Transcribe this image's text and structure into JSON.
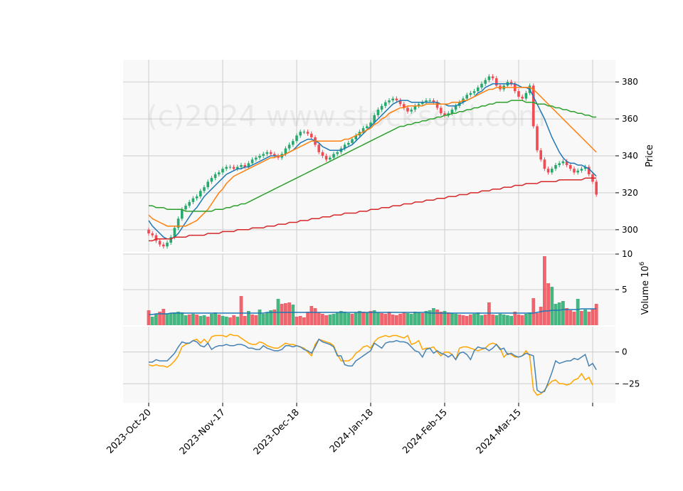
{
  "watermark": "(c)2024 www.stocksoid.com",
  "colors": {
    "up": "#26a96c",
    "down": "#ef4b55",
    "ma_blue": "#1f77b4",
    "ma_orange": "#ff7f0e",
    "ma_green": "#2ca02c",
    "ma_red": "#d62728",
    "osc_blue": "#4682b4",
    "osc_orange": "#ffa500",
    "grid": "#cccccc",
    "panel_bg": "#f8f8f8"
  },
  "chart_data": {
    "type": "candlestick",
    "x_tick_labels": [
      "2023-Oct-20",
      "2023-Nov-17",
      "2023-Dec-18",
      "2024-Jan-18",
      "2024-Feb-15",
      "2024-Mar-15"
    ],
    "x_tick_index": [
      0,
      20,
      40,
      60,
      80,
      100
    ],
    "price": {
      "ylabel": "Price",
      "ylim": [
        288,
        392
      ],
      "yticks": [
        300,
        320,
        340,
        360,
        380
      ],
      "close": [
        298,
        297,
        294,
        292,
        291,
        293,
        296,
        301,
        306,
        311,
        313,
        315,
        317,
        318,
        321,
        323,
        326,
        328,
        330,
        331,
        333,
        334,
        334,
        333,
        334,
        335,
        334,
        336,
        338,
        339,
        340,
        341,
        342,
        341,
        340,
        339,
        341,
        344,
        346,
        348,
        351,
        353,
        353,
        352,
        350,
        346,
        342,
        340,
        338,
        339,
        341,
        342,
        344,
        346,
        347,
        349,
        351,
        353,
        355,
        356,
        358,
        362,
        365,
        367,
        369,
        370,
        371,
        370,
        368,
        366,
        364,
        365,
        367,
        368,
        369,
        370,
        370,
        369,
        366,
        363,
        362,
        363,
        365,
        367,
        369,
        371,
        373,
        374,
        375,
        377,
        379,
        381,
        383,
        382,
        378,
        376,
        378,
        380,
        379,
        375,
        372,
        371,
        374,
        378,
        356,
        343,
        338,
        333,
        331,
        333,
        335,
        336,
        337,
        335,
        333,
        331,
        332,
        333,
        334,
        330,
        326,
        319
      ]
    },
    "moving_averages": [
      {
        "color": "blue",
        "values": [
          305,
          302,
          300,
          298,
          296,
          295,
          295,
          296,
          298,
          301,
          304,
          307,
          310,
          312,
          315,
          318,
          320,
          322,
          324,
          326,
          328,
          330,
          331,
          332,
          333,
          333,
          334,
          334,
          335,
          336,
          337,
          338,
          339,
          340,
          340,
          340,
          340,
          341,
          342,
          343,
          345,
          347,
          348,
          349,
          349,
          348,
          347,
          345,
          344,
          343,
          343,
          343,
          343,
          344,
          345,
          346,
          348,
          350,
          352,
          354,
          356,
          358,
          360,
          362,
          364,
          366,
          368,
          369,
          370,
          370,
          370,
          369,
          369,
          369,
          369,
          369,
          369,
          369,
          369,
          368,
          368,
          367,
          367,
          367,
          368,
          369,
          370,
          371,
          372,
          374,
          375,
          377,
          378,
          379,
          379,
          379,
          379,
          379,
          379,
          379,
          378,
          377,
          377,
          376,
          372,
          368,
          364,
          360,
          355,
          350,
          346,
          342,
          339,
          337,
          336,
          336,
          335,
          335,
          334,
          333,
          331,
          329
        ]
      },
      {
        "color": "orange",
        "values": [
          308,
          306,
          305,
          304,
          303,
          302,
          302,
          302,
          302,
          302,
          302,
          303,
          304,
          305,
          307,
          309,
          311,
          314,
          317,
          320,
          322,
          325,
          327,
          329,
          330,
          331,
          332,
          333,
          334,
          335,
          336,
          337,
          338,
          339,
          339,
          340,
          340,
          341,
          342,
          343,
          344,
          345,
          346,
          347,
          348,
          348,
          348,
          348,
          348,
          348,
          348,
          348,
          348,
          349,
          349,
          350,
          351,
          352,
          353,
          354,
          355,
          357,
          358,
          360,
          361,
          363,
          364,
          365,
          366,
          366,
          367,
          367,
          367,
          367,
          367,
          368,
          368,
          368,
          368,
          368,
          368,
          368,
          369,
          369,
          369,
          370,
          370,
          371,
          372,
          373,
          374,
          375,
          376,
          376,
          377,
          377,
          377,
          377,
          377,
          377,
          377,
          377,
          377,
          377,
          376,
          374,
          372,
          370,
          368,
          366,
          364,
          362,
          360,
          358,
          356,
          354,
          352,
          350,
          348,
          346,
          344,
          342
        ]
      },
      {
        "color": "green",
        "values": [
          313,
          313,
          312,
          312,
          312,
          311,
          311,
          311,
          311,
          311,
          310,
          310,
          310,
          310,
          310,
          310,
          310,
          310,
          311,
          311,
          311,
          312,
          312,
          313,
          313,
          314,
          314,
          315,
          316,
          317,
          318,
          319,
          320,
          321,
          322,
          323,
          324,
          325,
          326,
          327,
          328,
          329,
          330,
          331,
          332,
          333,
          334,
          335,
          336,
          337,
          338,
          339,
          340,
          341,
          342,
          343,
          344,
          345,
          346,
          347,
          348,
          349,
          350,
          351,
          352,
          353,
          354,
          355,
          356,
          356,
          357,
          357,
          358,
          358,
          359,
          359,
          360,
          360,
          361,
          361,
          362,
          362,
          363,
          363,
          364,
          364,
          365,
          365,
          366,
          366,
          367,
          367,
          368,
          368,
          369,
          369,
          369,
          369,
          370,
          370,
          370,
          370,
          369,
          369,
          369,
          368,
          368,
          368,
          367,
          367,
          366,
          366,
          365,
          365,
          364,
          364,
          363,
          363,
          362,
          362,
          361,
          361
        ]
      },
      {
        "color": "red",
        "values": [
          294,
          294,
          295,
          295,
          295,
          295,
          295,
          296,
          296,
          296,
          296,
          297,
          297,
          297,
          297,
          297,
          298,
          298,
          298,
          298,
          299,
          299,
          299,
          299,
          300,
          300,
          300,
          300,
          301,
          301,
          301,
          301,
          302,
          302,
          302,
          303,
          303,
          303,
          304,
          304,
          304,
          305,
          305,
          305,
          306,
          306,
          306,
          307,
          307,
          307,
          308,
          308,
          308,
          309,
          309,
          309,
          309,
          310,
          310,
          310,
          311,
          311,
          311,
          312,
          312,
          312,
          313,
          313,
          313,
          314,
          314,
          314,
          315,
          315,
          315,
          316,
          316,
          316,
          317,
          317,
          317,
          318,
          318,
          318,
          319,
          319,
          319,
          320,
          320,
          320,
          321,
          321,
          321,
          322,
          322,
          322,
          323,
          323,
          323,
          324,
          324,
          324,
          325,
          325,
          325,
          325,
          326,
          326,
          326,
          326,
          326,
          327,
          327,
          327,
          327,
          327,
          327,
          327,
          328,
          328,
          328,
          328
        ]
      }
    ],
    "volume": {
      "ylabel": "Volume  10^6",
      "ylim": [
        0,
        10
      ],
      "yticks": [
        5,
        10
      ],
      "values": [
        2.1,
        1.2,
        1.6,
        1.9,
        2.3,
        1.6,
        1.7,
        1.8,
        1.9,
        1.8,
        1.4,
        1.5,
        1.6,
        1.5,
        1.3,
        1.4,
        1.2,
        1.6,
        1.8,
        1.5,
        1.3,
        1.2,
        1.1,
        1.4,
        1.2,
        4.1,
        1.3,
        2.0,
        1.5,
        1.4,
        2.2,
        1.6,
        1.8,
        2.1,
        2.2,
        3.7,
        3.0,
        3.1,
        3.2,
        2.9,
        1.2,
        1.3,
        1.1,
        1.9,
        2.7,
        2.4,
        1.8,
        1.6,
        1.4,
        1.5,
        1.6,
        1.8,
        2.0,
        1.9,
        1.7,
        1.6,
        1.8,
        2.0,
        1.9,
        1.8,
        2.0,
        2.1,
        1.8,
        1.7,
        1.6,
        1.9,
        1.5,
        1.4,
        1.6,
        1.8,
        1.7,
        1.6,
        1.9,
        1.8,
        1.7,
        2.0,
        2.1,
        2.4,
        2.2,
        1.9,
        2.0,
        1.8,
        1.7,
        1.6,
        1.5,
        1.4,
        1.3,
        1.5,
        1.6,
        1.8,
        1.4,
        1.5,
        3.2,
        1.5,
        1.4,
        1.6,
        1.5,
        1.4,
        1.3,
        1.9,
        1.5,
        1.4,
        1.6,
        1.8,
        3.8,
        1.7,
        2.6,
        9.7,
        5.9,
        5.4,
        3.0,
        3.2,
        3.4,
        2.4,
        2.1,
        1.9,
        3.7,
        2.0,
        2.2,
        1.9,
        2.3,
        3.0
      ],
      "down": [
        1,
        0,
        0,
        1,
        1,
        0,
        0,
        0,
        0,
        0,
        0,
        1,
        0,
        1,
        0,
        0,
        1,
        0,
        0,
        1,
        0,
        0,
        1,
        1,
        0,
        1,
        1,
        0,
        1,
        1,
        0,
        0,
        0,
        0,
        1,
        0,
        1,
        1,
        1,
        0,
        1,
        1,
        1,
        1,
        1,
        1,
        1,
        1,
        1,
        0,
        0,
        0,
        0,
        0,
        0,
        1,
        0,
        0,
        1,
        0,
        1,
        0,
        0,
        1,
        1,
        1,
        1,
        1,
        1,
        1,
        0,
        0,
        0,
        0,
        1,
        0,
        0,
        0,
        1,
        1,
        0,
        1,
        0,
        0,
        1,
        1,
        1,
        1,
        0,
        0,
        0,
        1,
        1,
        1,
        0,
        0,
        0,
        0,
        0,
        1,
        1,
        1,
        0,
        0,
        1,
        1,
        1,
        1,
        1,
        0,
        0,
        0,
        0,
        1,
        1,
        1,
        0,
        1,
        0,
        1,
        1,
        1
      ],
      "avg": [
        1.5,
        1.5,
        1.6,
        1.6,
        1.6,
        1.6,
        1.7,
        1.7,
        1.7,
        1.7,
        1.7,
        1.7,
        1.7,
        1.7,
        1.7,
        1.7,
        1.7,
        1.7,
        1.7,
        1.7,
        1.7,
        1.7,
        1.7,
        1.7,
        1.7,
        1.7,
        1.7,
        1.7,
        1.7,
        1.7,
        1.7,
        1.7,
        1.8,
        1.8,
        1.8,
        1.8,
        1.8,
        1.8,
        1.8,
        1.8,
        1.8,
        1.8,
        1.8,
        1.8,
        1.8,
        1.8,
        1.8,
        1.8,
        1.8,
        1.8,
        1.8,
        1.8,
        1.8,
        1.8,
        1.8,
        1.8,
        1.8,
        1.8,
        1.8,
        1.8,
        1.8,
        1.8,
        1.8,
        1.8,
        1.8,
        1.8,
        1.8,
        1.8,
        1.8,
        1.8,
        1.8,
        1.8,
        1.8,
        1.8,
        1.8,
        1.8,
        1.7,
        1.7,
        1.7,
        1.7,
        1.7,
        1.7,
        1.7,
        1.7,
        1.7,
        1.7,
        1.7,
        1.7,
        1.7,
        1.7,
        1.7,
        1.7,
        1.7,
        1.7,
        1.7,
        1.7,
        1.7,
        1.7,
        1.7,
        1.7,
        1.7,
        1.7,
        1.7,
        1.7,
        1.7,
        1.8,
        1.9,
        2.0,
        2.0,
        2.1,
        2.1,
        2.1,
        2.2,
        2.2,
        2.2,
        2.2,
        2.2,
        2.3,
        2.3,
        2.3,
        2.3,
        2.3
      ]
    },
    "oscillator": {
      "ylim": [
        -40,
        20
      ],
      "yticks": [
        0,
        -25
      ],
      "blue": [
        -8,
        -8,
        -6,
        -7,
        -7,
        -7,
        -4,
        -1,
        4,
        8,
        7,
        7,
        9,
        8,
        5,
        4,
        7,
        2,
        4,
        5,
        5,
        6,
        5,
        5,
        6,
        6,
        5,
        3,
        3,
        2,
        2,
        5,
        3,
        2,
        1,
        1,
        2,
        5,
        5,
        4,
        5,
        4,
        2,
        1,
        -1,
        4,
        10,
        8,
        7,
        6,
        4,
        -3,
        -3,
        -10,
        -11,
        -11,
        -7,
        -5,
        -3,
        -1,
        1,
        7,
        5,
        3,
        7,
        8,
        8,
        9,
        8,
        8,
        7,
        4,
        1,
        0,
        -4,
        2,
        3,
        -1,
        1,
        -1,
        -2,
        -4,
        -2,
        -6,
        -1,
        0,
        -2,
        -6,
        1,
        4,
        3,
        3,
        1,
        3,
        6,
        2,
        3,
        -2,
        -1,
        -3,
        -4,
        -3,
        -1,
        -2,
        -3,
        -30,
        -32,
        -31,
        -24,
        -16,
        -7,
        -9,
        -8,
        -7,
        -7,
        -5,
        -6,
        -4,
        -2,
        -11,
        -9,
        -14
      ],
      "orange": [
        -10,
        -11,
        -10,
        -11,
        -11,
        -12,
        -10,
        -7,
        -3,
        4,
        6,
        7,
        9,
        10,
        7,
        10,
        7,
        12,
        13,
        13,
        13,
        12,
        14,
        13,
        13,
        11,
        9,
        7,
        6,
        6,
        8,
        7,
        5,
        4,
        3,
        3,
        5,
        7,
        6,
        6,
        5,
        4,
        3,
        0,
        -3,
        6,
        10,
        9,
        8,
        7,
        5,
        -2,
        -7,
        -7,
        -7,
        -5,
        -1,
        1,
        4,
        5,
        3,
        8,
        11,
        12,
        13,
        12,
        13,
        13,
        12,
        11,
        13,
        6,
        7,
        9,
        2,
        3,
        3,
        4,
        0,
        -3,
        0,
        0,
        -2,
        -6,
        3,
        4,
        4,
        3,
        2,
        1,
        2,
        3,
        6,
        7,
        6,
        3,
        -4,
        -1,
        -2,
        -4,
        -4,
        -3,
        1,
        -3,
        -30,
        -34,
        -33,
        -30,
        -26,
        -23,
        -22,
        -25,
        -25,
        -26,
        -25,
        -22,
        -21,
        -17,
        -22,
        -20,
        -26
      ]
    }
  }
}
